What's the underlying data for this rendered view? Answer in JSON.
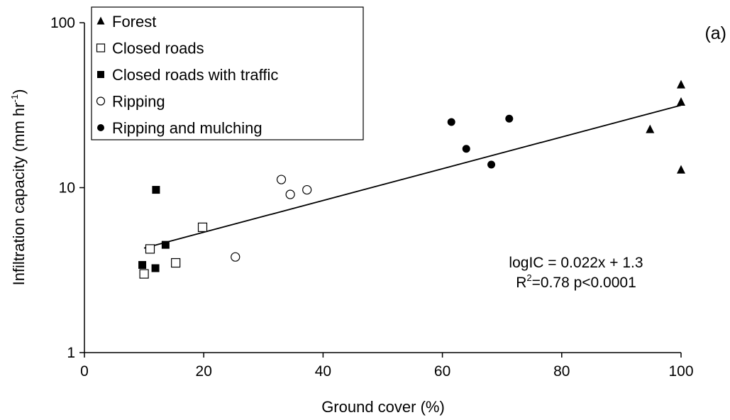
{
  "chart_data": {
    "type": "scatter",
    "panel_label": "(a)",
    "xlabel": "Ground cover (%)",
    "ylabel_main": "Infiltration capacity (mm hr",
    "ylabel_sup": "-1",
    "ylabel_close": ")",
    "xlim": [
      0,
      100
    ],
    "ylim": [
      1,
      100
    ],
    "y_scale": "log",
    "x_ticks": [
      "0",
      "20",
      "40",
      "60",
      "80",
      "100"
    ],
    "y_ticks": [
      "1",
      "10",
      "100"
    ],
    "grid": false,
    "legend_position": "top-left",
    "series": [
      {
        "name": "Forest",
        "marker": "triangle",
        "points": [
          [
            94.8,
            22.5
          ],
          [
            100,
            42
          ],
          [
            100,
            33
          ],
          [
            100,
            12.8
          ]
        ]
      },
      {
        "name": "Closed roads",
        "marker": "square-open",
        "points": [
          [
            10,
            3.0
          ],
          [
            11,
            4.25
          ],
          [
            15.3,
            3.5
          ],
          [
            19.8,
            5.75
          ]
        ]
      },
      {
        "name": "Closed roads with traffic",
        "marker": "square-filled",
        "points": [
          [
            9.7,
            3.4
          ],
          [
            11.9,
            3.25
          ],
          [
            12,
            9.7
          ],
          [
            13.6,
            4.5
          ]
        ]
      },
      {
        "name": "Ripping",
        "marker": "circle-open",
        "points": [
          [
            25.3,
            3.8
          ],
          [
            33,
            11.2
          ],
          [
            34.5,
            9.1
          ],
          [
            37.3,
            9.7
          ]
        ]
      },
      {
        "name": "Ripping and mulching",
        "marker": "circle-filled",
        "points": [
          [
            61.5,
            25
          ],
          [
            64,
            17.2
          ],
          [
            68.2,
            13.8
          ],
          [
            71.2,
            26.2
          ]
        ]
      }
    ],
    "trendline": {
      "x": [
        10,
        100
      ],
      "y": [
        4.3,
        31.6
      ]
    },
    "annotation_line1": "logIC = 0.022x + 1.3",
    "annotation_line2_prefix": "R",
    "annotation_line2_sup": "2",
    "annotation_line2_rest": "=0.78 p<0.0001"
  }
}
